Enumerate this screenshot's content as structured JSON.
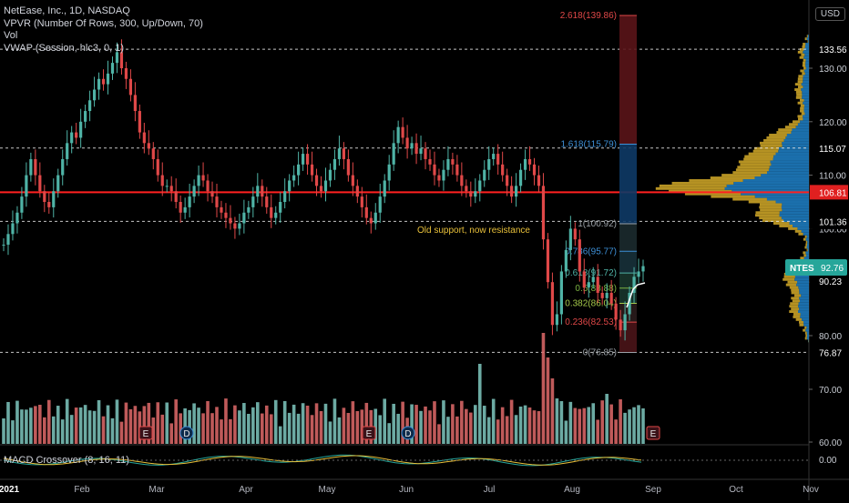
{
  "legend": {
    "symbol_line": "NetEase, Inc., 1D, NASDAQ",
    "vpvr_line": "VPVR (Number Of Rows, 300, Up/Down, 70)",
    "vol_line": "Vol",
    "vwap_line": "VWAP (Session, hlc3, 0, 1)"
  },
  "currency_selector": "USD",
  "annotation_text": "Old support, now resistance",
  "macd_label": "MACD Crossover (8, 16, 11)",
  "macd_value": "0.00",
  "colors": {
    "up": "#4fb3a6",
    "down": "#e04848",
    "resistance_line": "#ff2020",
    "vpvr_up": "#1e7bbf",
    "vpvr_down": "#c9a227",
    "ticker_badge": "#26a69a",
    "annotation": "#e8c03a"
  },
  "chart_data": {
    "type": "candlestick",
    "y_axis_ticks": [
      "130.00",
      "120.00",
      "110.00",
      "100.00",
      "90.00",
      "80.00",
      "70.00",
      "60.00"
    ],
    "x_axis_ticks": [
      "2021",
      "Feb",
      "Mar",
      "Apr",
      "May",
      "Jun",
      "Jul",
      "Aug",
      "Sep",
      "Oct",
      "Nov"
    ],
    "price_levels": [
      {
        "label": "133.56",
        "value": 133.56
      },
      {
        "label": "115.07",
        "value": 115.07
      },
      {
        "label": "106.81",
        "value": 106.81
      },
      {
        "label": "101.36",
        "value": 101.36
      },
      {
        "label": "90.23",
        "value": 90.23
      },
      {
        "label": "76.87",
        "value": 76.87
      }
    ],
    "current_price": {
      "ticker": "NTES",
      "value": "92.76"
    },
    "fibonacci": [
      {
        "label": "2.618(139.86)",
        "value": 139.86
      },
      {
        "label": "1.618(115.79)",
        "value": 115.79
      },
      {
        "label": "1(100.92)",
        "value": 100.92
      },
      {
        "label": "0.786(95.77)",
        "value": 95.77
      },
      {
        "label": "0.618(91.72)",
        "value": 91.72
      },
      {
        "label": "0.5(88.88)",
        "value": 88.88
      },
      {
        "label": "0.382(86.04)",
        "value": 86.04
      },
      {
        "label": "0.236(82.53)",
        "value": 82.53
      },
      {
        "label": "0(76.85)",
        "value": 76.85
      }
    ],
    "event_markers": [
      {
        "label": "E",
        "month": "Feb"
      },
      {
        "label": "D",
        "month": "Feb"
      },
      {
        "label": "E",
        "month": "May"
      },
      {
        "label": "D",
        "month": "May"
      },
      {
        "label": "E",
        "month": "Aug"
      }
    ],
    "close_series": [
      97,
      99,
      101,
      103,
      106,
      110,
      113,
      110,
      107,
      105,
      104,
      107,
      110,
      113,
      116,
      118,
      117,
      120,
      122,
      124,
      126,
      128,
      127,
      129,
      131,
      133,
      130,
      128,
      125,
      122,
      118,
      116,
      115,
      113,
      110,
      108,
      108,
      107,
      105,
      103,
      104,
      106,
      108,
      110,
      109,
      107,
      106,
      104,
      103,
      102,
      101,
      100,
      101,
      103,
      104,
      106,
      108,
      106,
      104,
      102,
      103,
      105,
      107,
      109,
      110,
      112,
      114,
      112,
      110,
      108,
      107,
      109,
      111,
      113,
      115,
      113,
      110,
      108,
      106,
      104,
      102,
      101,
      103,
      106,
      109,
      112,
      116,
      119,
      117,
      115,
      116,
      114,
      115,
      113,
      112,
      110,
      109,
      111,
      113,
      112,
      110,
      108,
      107,
      106,
      107,
      109,
      111,
      113,
      114,
      112,
      110,
      108,
      106,
      108,
      111,
      113,
      112,
      110,
      108,
      98,
      90,
      82,
      84,
      92,
      96,
      100,
      98,
      92,
      89,
      90,
      91,
      88,
      87,
      88,
      86,
      83,
      81,
      84,
      88,
      91,
      92,
      93
    ]
  }
}
